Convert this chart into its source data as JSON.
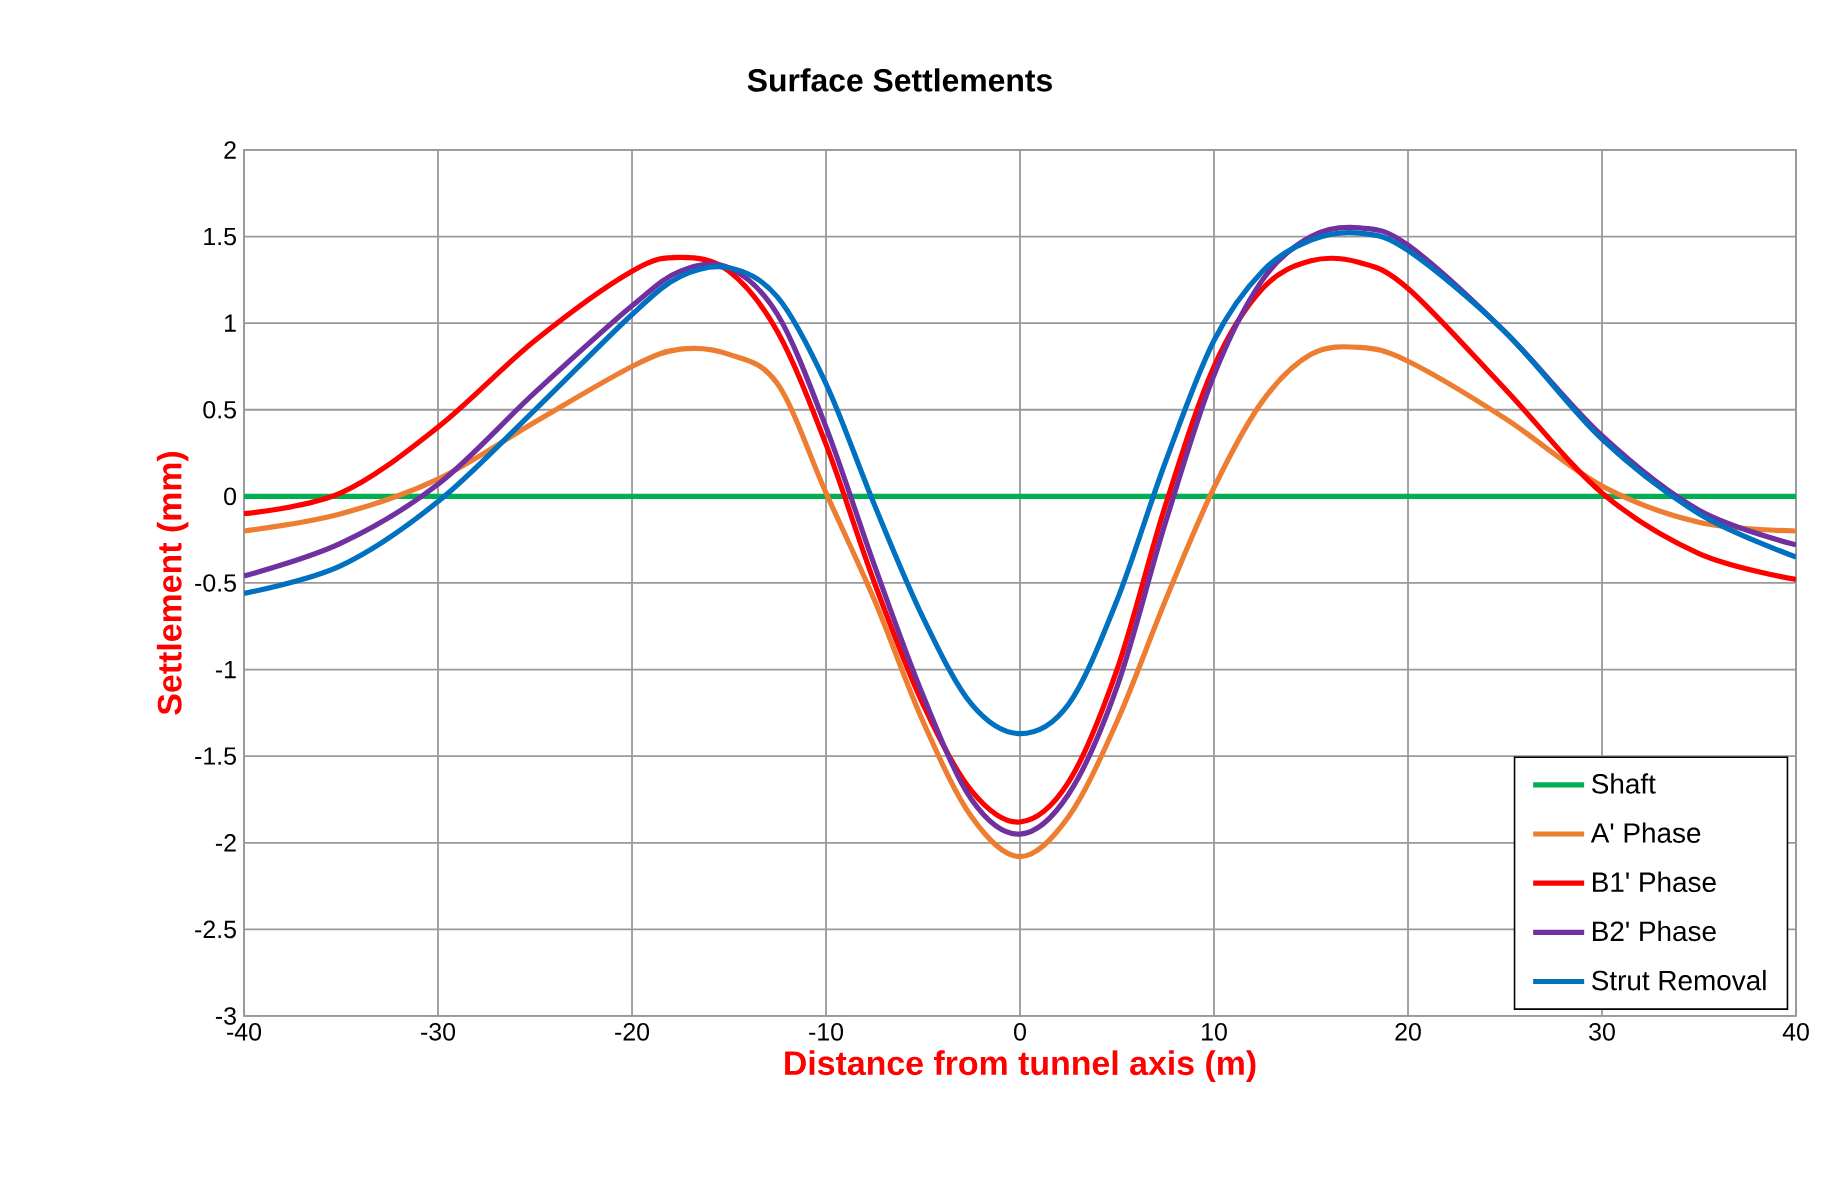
{
  "chart_data": {
    "type": "line",
    "title": "Surface Settlements",
    "xlabel": "Distance from tunnel axis (m)",
    "ylabel": "Settlement (mm)",
    "xlim": [
      -40,
      40
    ],
    "xticks": [
      -40,
      -30,
      -20,
      -10,
      0,
      10,
      20,
      30,
      40
    ],
    "ylim": [
      -3,
      2
    ],
    "yticks": [
      -3,
      -2.5,
      -2,
      -1.5,
      -1,
      -0.5,
      0,
      0.5,
      1,
      1.5,
      2
    ],
    "grid": true,
    "legend": "bottom right",
    "marker": "none",
    "line_style": "solid",
    "series": [
      {
        "name": "Shaft",
        "color": "#00b050",
        "x": [
          -40,
          40
        ],
        "values": [
          0,
          0
        ]
      },
      {
        "name": "A' Phase",
        "color": "#ed7d31",
        "x": [
          -40,
          -35,
          -30,
          -25,
          -20,
          -17.5,
          -15,
          -12.5,
          -10,
          -7.5,
          -5,
          -2.5,
          0,
          2.5,
          5,
          7.5,
          10,
          12.5,
          15,
          17.5,
          20,
          25,
          30,
          35,
          40
        ],
        "values": [
          -0.2,
          -0.1,
          0.1,
          0.43,
          0.75,
          0.85,
          0.82,
          0.65,
          0.02,
          -0.6,
          -1.3,
          -1.85,
          -2.08,
          -1.85,
          -1.3,
          -0.6,
          0.05,
          0.55,
          0.82,
          0.86,
          0.78,
          0.45,
          0.06,
          -0.15,
          -0.2
        ]
      },
      {
        "name": "B1' Phase",
        "color": "#ff0000",
        "x": [
          -40,
          -35,
          -30,
          -25,
          -20,
          -17.5,
          -15,
          -12.5,
          -10,
          -7.5,
          -5,
          -2.5,
          0,
          2.5,
          5,
          7.5,
          10,
          12.5,
          15,
          17.5,
          20,
          25,
          30,
          35,
          40
        ],
        "values": [
          -0.1,
          0.02,
          0.4,
          0.9,
          1.3,
          1.38,
          1.3,
          0.95,
          0.3,
          -0.5,
          -1.2,
          -1.7,
          -1.88,
          -1.65,
          -1.0,
          -0.05,
          0.75,
          1.2,
          1.36,
          1.35,
          1.2,
          0.62,
          0.02,
          -0.33,
          -0.48
        ]
      },
      {
        "name": "B2' Phase",
        "color": "#7030a0",
        "x": [
          -40,
          -35,
          -30,
          -25,
          -20,
          -17.5,
          -15,
          -12.5,
          -10,
          -7.5,
          -5,
          -2.5,
          0,
          2.5,
          5,
          7.5,
          10,
          12.5,
          15,
          17.5,
          20,
          25,
          30,
          35,
          40
        ],
        "values": [
          -0.46,
          -0.27,
          0.07,
          0.6,
          1.1,
          1.3,
          1.32,
          1.05,
          0.4,
          -0.4,
          -1.15,
          -1.75,
          -1.95,
          -1.72,
          -1.1,
          -0.15,
          0.7,
          1.25,
          1.5,
          1.55,
          1.45,
          0.95,
          0.35,
          -0.08,
          -0.28
        ]
      },
      {
        "name": "Strut Removal",
        "color": "#0070c0",
        "x": [
          -40,
          -35,
          -30,
          -25,
          -20,
          -17.5,
          -15,
          -12.5,
          -10,
          -7.5,
          -5,
          -2.5,
          0,
          2.5,
          5,
          7.5,
          10,
          12.5,
          15,
          17.5,
          20,
          25,
          30,
          35,
          40
        ],
        "values": [
          -0.56,
          -0.4,
          -0.03,
          0.5,
          1.05,
          1.27,
          1.32,
          1.15,
          0.65,
          -0.05,
          -0.7,
          -1.2,
          -1.37,
          -1.2,
          -0.6,
          0.2,
          0.9,
          1.3,
          1.48,
          1.52,
          1.42,
          0.95,
          0.33,
          -0.1,
          -0.35
        ]
      }
    ]
  }
}
